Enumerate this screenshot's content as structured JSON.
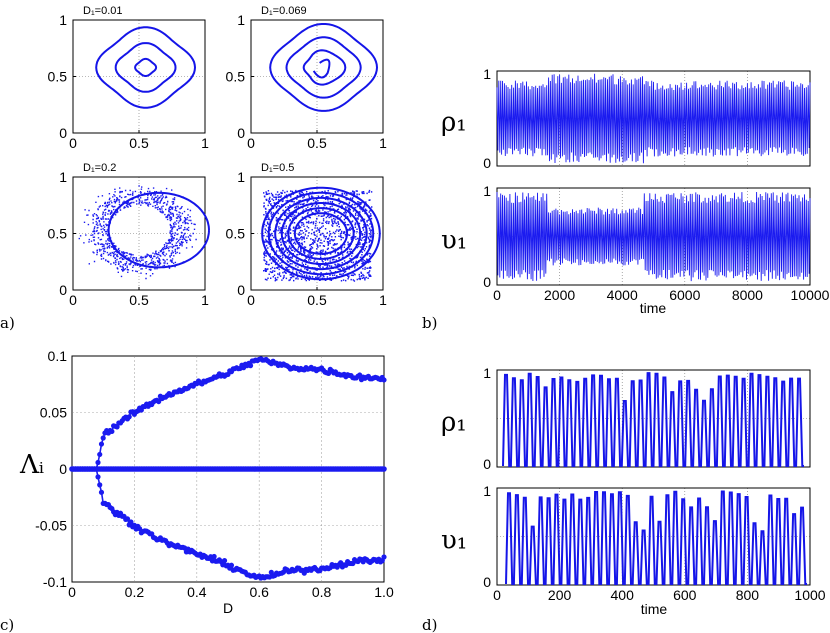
{
  "colors": {
    "series": "#1b1bf0",
    "axis": "#000000"
  },
  "chart_data": [
    {
      "id": "a",
      "type": "scatter",
      "panel_label": "a)",
      "subplots": [
        {
          "title": "D₁=0.01",
          "xlim": [
            0,
            1
          ],
          "ylim": [
            0,
            1
          ],
          "xticks": [
            "0",
            "0.5",
            "1"
          ],
          "yticks": [
            "0",
            "0.5",
            "1"
          ],
          "regime": "closed-curves",
          "rings": [
            0.07,
            0.2,
            0.33
          ]
        },
        {
          "title": "D₁=0.069",
          "xlim": [
            0,
            1
          ],
          "ylim": [
            0,
            1
          ],
          "xticks": [
            "0",
            "0.5",
            "1"
          ],
          "yticks": [
            "0",
            "0.5",
            "1"
          ],
          "regime": "spiral-torus"
        },
        {
          "title": "D₁=0.2",
          "xlim": [
            0,
            1
          ],
          "ylim": [
            0,
            1
          ],
          "xticks": [
            "0",
            "0.5",
            "1"
          ],
          "yticks": [
            "0",
            "0.5",
            "1"
          ],
          "regime": "scattered-ring"
        },
        {
          "title": "D₁=0.5",
          "xlim": [
            0,
            1
          ],
          "ylim": [
            0,
            1
          ],
          "xticks": [
            "0",
            "0.5",
            "1"
          ],
          "yticks": [
            "0",
            "0.5",
            "1"
          ],
          "regime": "filled-square"
        }
      ]
    },
    {
      "id": "b",
      "type": "line",
      "panel_label": "b)",
      "x_range": [
        0,
        10000
      ],
      "xlabel": "time",
      "xticks": [
        "0",
        "2000",
        "4000",
        "6000",
        "8000",
        "10000"
      ],
      "subplots": [
        {
          "ylabel": "ρ₁",
          "ylim": [
            0,
            1
          ],
          "yticks": [
            "0",
            "1"
          ]
        },
        {
          "ylabel": "υ₁",
          "ylim": [
            0,
            1
          ],
          "yticks": [
            "0",
            "1"
          ]
        }
      ]
    },
    {
      "id": "c",
      "type": "line",
      "panel_label": "c)",
      "xlabel": "D",
      "ylabel": "Λᵢ",
      "xlim": [
        0,
        1
      ],
      "ylim": [
        -0.1,
        0.1
      ],
      "xticks": [
        "0",
        "0.2",
        "0.4",
        "0.6",
        "0.8",
        "1.0"
      ],
      "yticks": [
        "-0.1",
        "-0.05",
        "0",
        "0.05",
        "0.1"
      ],
      "onset_D": 0.08,
      "series": [
        {
          "name": "positive exponent",
          "x": [
            0,
            0.08,
            0.1,
            0.15,
            0.2,
            0.3,
            0.4,
            0.5,
            0.6,
            0.7,
            0.8,
            0.9,
            1.0
          ],
          "y": [
            0,
            0,
            0.03,
            0.04,
            0.05,
            0.065,
            0.075,
            0.085,
            0.097,
            0.09,
            0.088,
            0.082,
            0.08
          ]
        },
        {
          "name": "zero exponents",
          "x": [
            0,
            1.0
          ],
          "y": [
            0,
            0
          ]
        },
        {
          "name": "negative exponent",
          "x": [
            0,
            0.08,
            0.1,
            0.15,
            0.2,
            0.3,
            0.4,
            0.5,
            0.6,
            0.7,
            0.8,
            0.9,
            1.0
          ],
          "y": [
            0,
            0,
            -0.03,
            -0.04,
            -0.05,
            -0.065,
            -0.075,
            -0.085,
            -0.097,
            -0.09,
            -0.088,
            -0.082,
            -0.08
          ]
        }
      ]
    },
    {
      "id": "d",
      "type": "line",
      "panel_label": "d)",
      "x_range": [
        0,
        1000
      ],
      "xlabel": "time",
      "xticks": [
        "0",
        "200",
        "400",
        "600",
        "800",
        "1000"
      ],
      "subplots": [
        {
          "ylabel": "ρ₁",
          "ylim": [
            0,
            1
          ],
          "yticks": [
            "0",
            "1"
          ]
        },
        {
          "ylabel": "υ₁",
          "ylim": [
            0,
            1
          ],
          "yticks": [
            "0",
            "1"
          ]
        }
      ]
    }
  ]
}
